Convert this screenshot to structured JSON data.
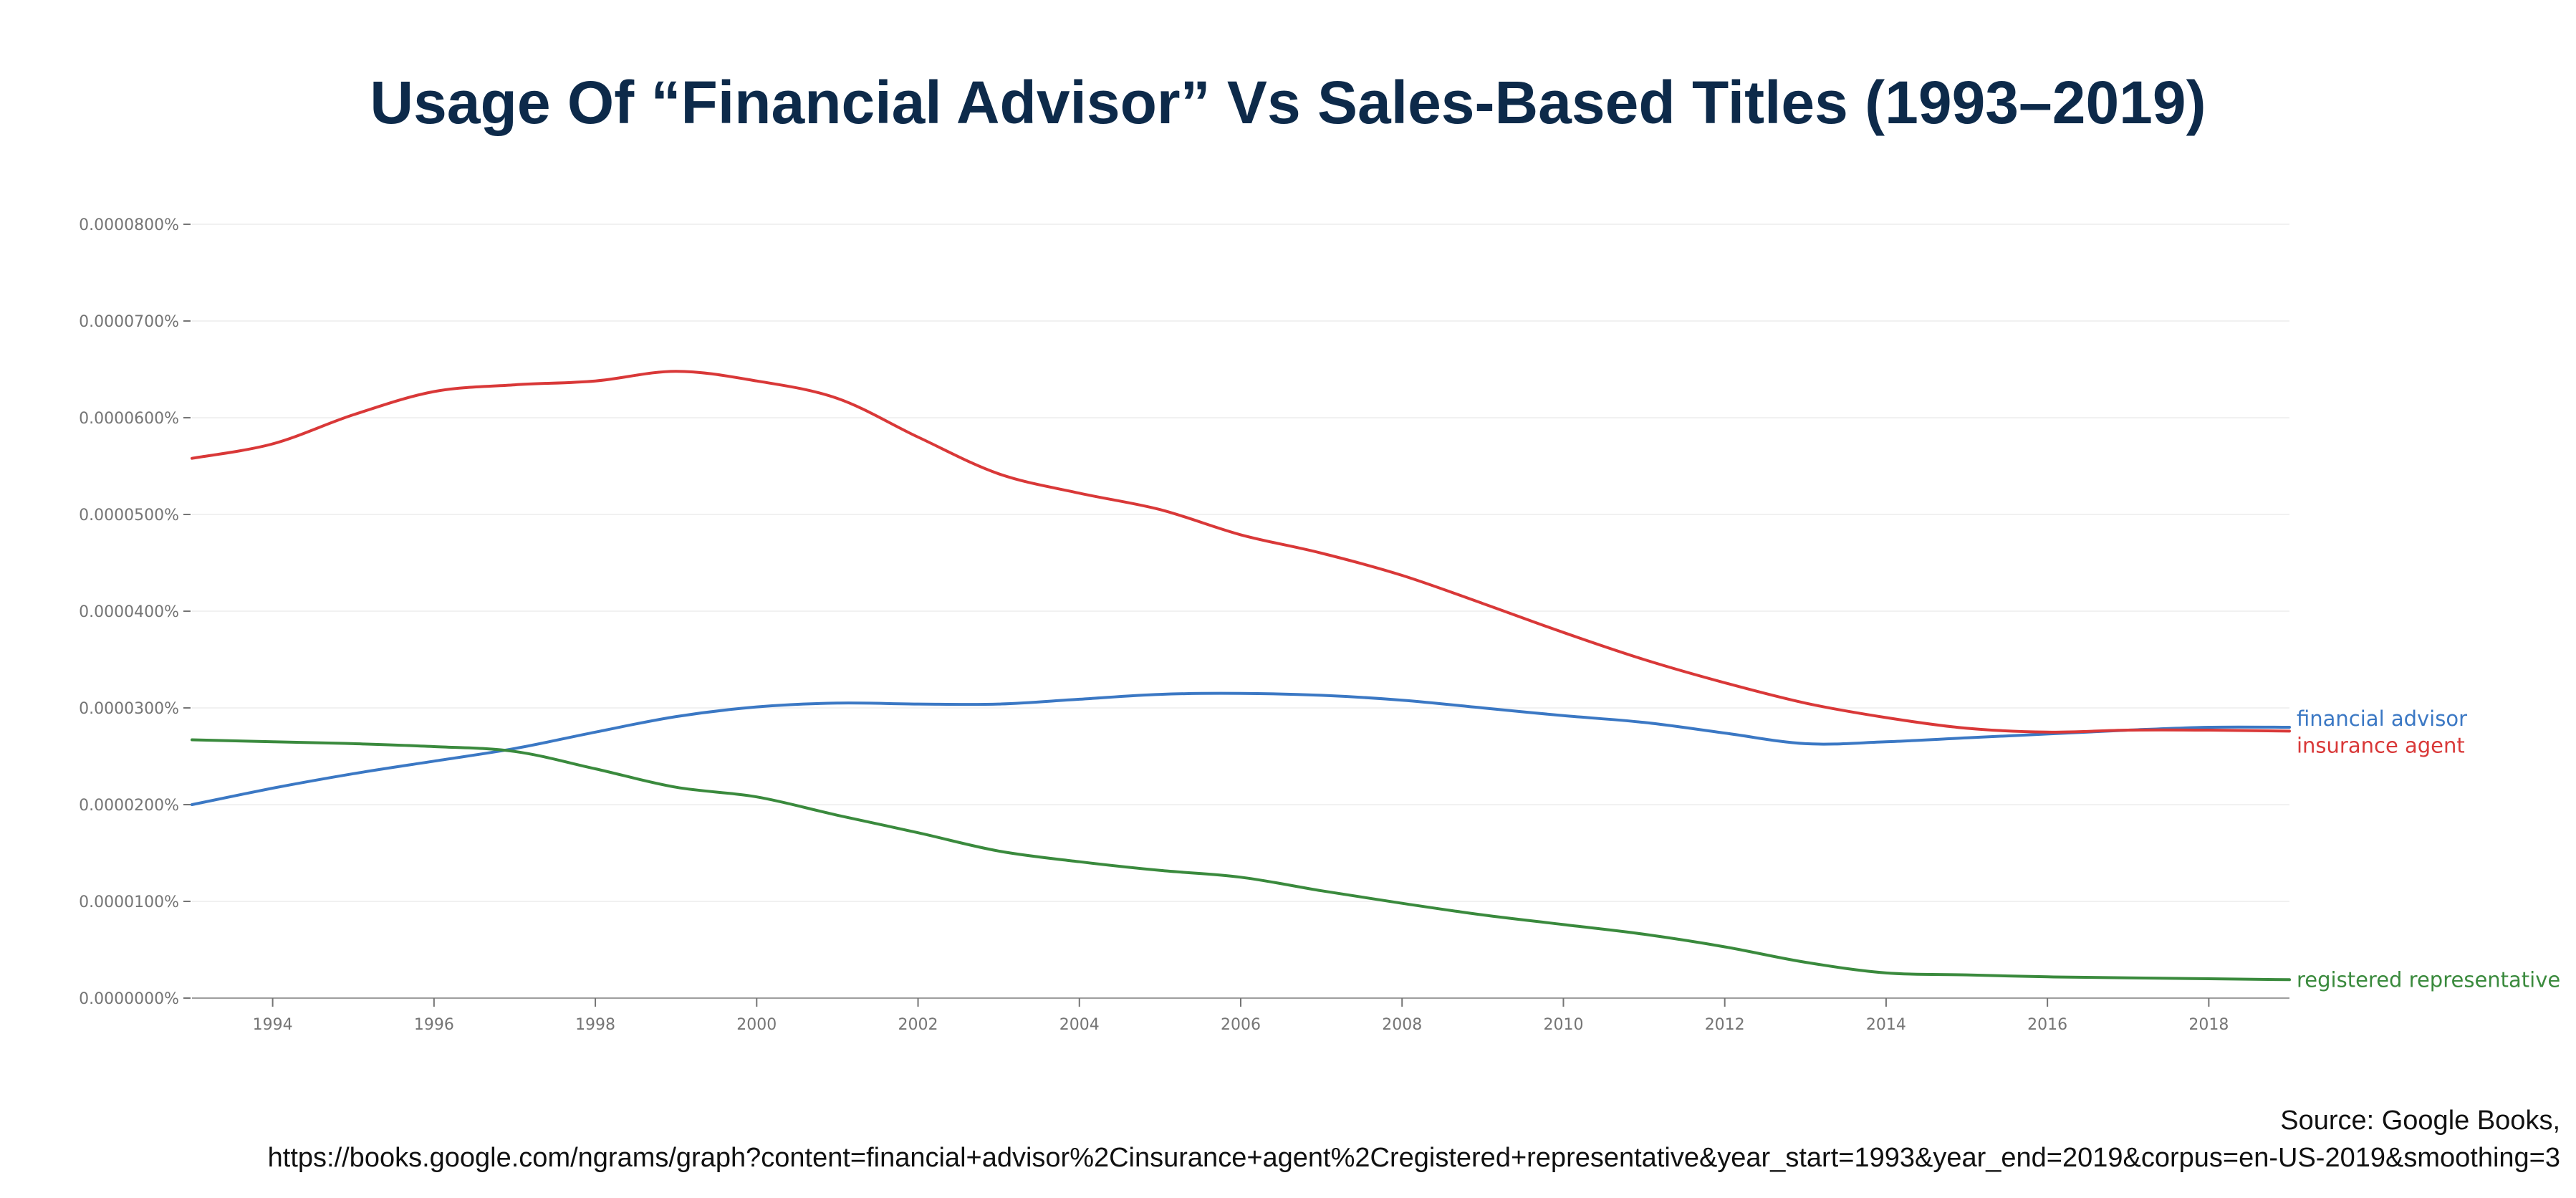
{
  "chart_data": {
    "type": "line",
    "title": "Usage Of “Financial Advisor” Vs Sales-Based Titles (1993–2019)",
    "xlabel": "",
    "ylabel": "",
    "xlim": [
      1993,
      2019
    ],
    "ylim": [
      0,
      8e-07
    ],
    "y_tick_labels": [
      "0.0000000%",
      "0.0000100%",
      "0.0000200%",
      "0.0000300%",
      "0.0000400%",
      "0.0000500%",
      "0.0000600%",
      "0.0000700%",
      "0.0000800%"
    ],
    "x_tick_labels": [
      "1994",
      "1996",
      "1998",
      "2000",
      "2002",
      "2004",
      "2006",
      "2008",
      "2010",
      "2012",
      "2014",
      "2016",
      "2018"
    ],
    "grid": true,
    "legend": "inline labels at right end of lines",
    "x": [
      1993,
      1994,
      1995,
      1996,
      1997,
      1998,
      1999,
      2000,
      2001,
      2002,
      2003,
      2004,
      2005,
      2006,
      2007,
      2008,
      2009,
      2010,
      2011,
      2012,
      2013,
      2014,
      2015,
      2016,
      2017,
      2018,
      2019
    ],
    "series": [
      {
        "name": "financial advisor",
        "color": "#3b78c4",
        "values": [
          2e-07,
          2.17e-07,
          2.32e-07,
          2.45e-07,
          2.58e-07,
          2.75e-07,
          2.91e-07,
          3.01e-07,
          3.05e-07,
          3.04e-07,
          3.04e-07,
          3.09e-07,
          3.14e-07,
          3.15e-07,
          3.13e-07,
          3.08e-07,
          3e-07,
          2.92e-07,
          2.85e-07,
          2.74e-07,
          2.63e-07,
          2.65e-07,
          2.69e-07,
          2.73e-07,
          2.77e-07,
          2.8e-07,
          2.8e-07
        ]
      },
      {
        "name": "insurance agent",
        "color": "#d93838",
        "values": [
          5.58e-07,
          5.73e-07,
          6.03e-07,
          6.27e-07,
          6.34e-07,
          6.38e-07,
          6.48e-07,
          6.38e-07,
          6.2e-07,
          5.8e-07,
          5.42e-07,
          5.22e-07,
          5.05e-07,
          4.79e-07,
          4.6e-07,
          4.37e-07,
          4.08e-07,
          3.78e-07,
          3.5e-07,
          3.26e-07,
          3.05e-07,
          2.9e-07,
          2.79e-07,
          2.75e-07,
          2.77e-07,
          2.77e-07,
          2.76e-07
        ]
      },
      {
        "name": "registered representative",
        "color": "#3a8a3d",
        "values": [
          2.67e-07,
          2.65e-07,
          2.63e-07,
          2.6e-07,
          2.55e-07,
          2.37e-07,
          2.18e-07,
          2.08e-07,
          1.89e-07,
          1.71e-07,
          1.52e-07,
          1.41e-07,
          1.32e-07,
          1.25e-07,
          1.11e-07,
          9.8e-08,
          8.6e-08,
          7.6e-08,
          6.6e-08,
          5.3e-08,
          3.7e-08,
          2.6e-08,
          2.4e-08,
          2.2e-08,
          2.1e-08,
          2e-08,
          1.9e-08
        ]
      }
    ]
  },
  "source": {
    "line1": "Source: Google Books,",
    "line2": "https://books.google.com/ngrams/graph?content=financial+advisor%2Cinsurance+agent%2Cregistered+representative&year_start=1993&year_end=2019&corpus=en-US-2019&smoothing=3"
  }
}
